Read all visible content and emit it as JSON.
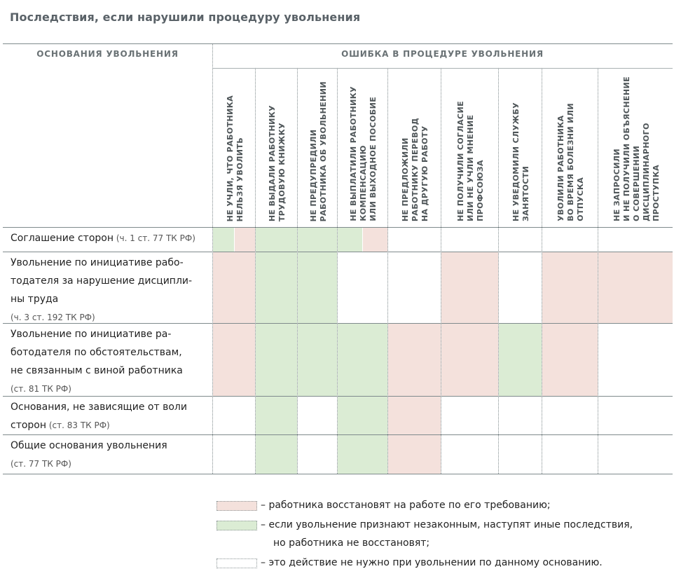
{
  "title": "Последствия, если нарушили процедуру увольнения",
  "header": {
    "left": "ОСНОВАНИЯ УВОЛЬНЕНИЯ",
    "right": "ОШИБКА В ПРОЦЕДУРЕ УВОЛЬНЕНИЯ"
  },
  "columns": [
    "НЕ УЧЛИ, ЧТО РАБОТНИКА\nНЕЛЬЗЯ УВОЛИТЬ",
    "НЕ ВЫДАЛИ РАБОТНИКУ\nТРУДОВУЮ КНИЖКУ",
    "НЕ ПРЕДУПРЕДИЛИ\nРАБОТНИКА ОБ УВОЛЬНЕНИИ",
    "НЕ ВЫПЛАТИЛИ РАБОТНИКУ\nКОМПЕНСАЦИЮ\nИЛИ ВЫХОДНОЕ ПОСОБИЕ",
    "НЕ ПРЕДЛОЖИЛИ\nРАБОТНИКУ ПЕРЕВОД\nНА ДРУГУЮ РАБОТУ",
    "НЕ ПОЛУЧИЛИ СОГЛАСИЕ\nИЛИ НЕ УЧЛИ МНЕНИЕ\nПРОФСОЮЗА",
    "НЕ УВЕДОМИЛИ СЛУЖБУ\nЗАНЯТОСТИ",
    "УВОЛИЛИ РАБОТНИКА\nВО ВРЕМЯ БОЛЕЗНИ ИЛИ\nОТПУСКА",
    "НЕ ЗАПРОСИЛИ\nИ НЕ ПОЛУЧИЛИ ОБЪЯСНЕНИЕ\nО СОВЕРШЕНИИ\nДИСЦИПЛИНАРНОГО\nПРОСТУПКА"
  ],
  "rows": [
    {
      "lines": [
        {
          "text": "Соглашение сторон",
          "ref": " (ч. 1 ст. 77 ТК РФ)"
        }
      ],
      "cells": [
        "green|pink",
        "green",
        "green",
        "green|pink",
        "",
        "",
        "",
        "",
        ""
      ]
    },
    {
      "lines": [
        {
          "text": "Увольнение по инициативе рабо-",
          "ref": ""
        },
        {
          "text": "тодателя за нарушение дисципли-",
          "ref": ""
        },
        {
          "text": "ны труда",
          "ref": ""
        },
        {
          "text": "",
          "ref": "(ч. 3 ст. 192 ТК РФ)"
        }
      ],
      "cells": [
        "pink",
        "green",
        "green",
        "",
        "",
        "pink",
        "",
        "pink",
        "pink"
      ]
    },
    {
      "lines": [
        {
          "text": "Увольнение по инициативе ра-",
          "ref": ""
        },
        {
          "text": "ботодателя по обстоятельствам,",
          "ref": ""
        },
        {
          "text": "не связанным с виной работника",
          "ref": ""
        },
        {
          "text": "",
          "ref": "(ст. 81 ТК РФ)"
        }
      ],
      "cells": [
        "pink",
        "green",
        "green",
        "green",
        "pink",
        "pink",
        "green",
        "pink",
        ""
      ]
    },
    {
      "lines": [
        {
          "text": "Основания, не зависящие от воли",
          "ref": ""
        },
        {
          "text": "сторон",
          "ref": " (ст. 83 ТК РФ)"
        }
      ],
      "cells": [
        "",
        "green",
        "",
        "green",
        "pink",
        "",
        "",
        "",
        ""
      ]
    },
    {
      "lines": [
        {
          "text": "Общие основания увольнения",
          "ref": ""
        },
        {
          "text": "",
          "ref": "(ст. 77 ТК РФ)"
        }
      ],
      "cells": [
        "",
        "green",
        "",
        "green",
        "pink",
        "",
        "",
        "",
        ""
      ]
    }
  ],
  "legend": [
    {
      "type": "pink",
      "lines": [
        "– работника восстановят на работе по его требованию;"
      ]
    },
    {
      "type": "green",
      "lines": [
        "– если увольнение признают незаконным, наступят иные последствия,",
        "но работника не восстановят;"
      ]
    },
    {
      "type": "none",
      "lines": [
        "– это действие не нужно при увольнении по данному основанию."
      ]
    }
  ],
  "colors": {
    "pink": "#f4e1dc",
    "green": "#dbecd4",
    "rule": "#7f8a8c",
    "title": "#5a6268"
  }
}
